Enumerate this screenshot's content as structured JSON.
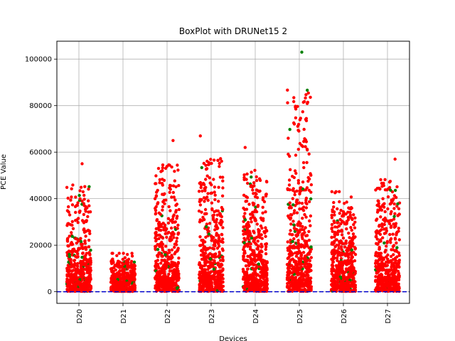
{
  "chart_data": {
    "type": "scatter",
    "title": "BoxPlot with DRUNet15 2",
    "xlabel": "Devices",
    "ylabel": "PCE Value",
    "ylim": [
      -5000,
      107700
    ],
    "yticks": [
      0,
      20000,
      40000,
      60000,
      80000,
      100000
    ],
    "grid": true,
    "categories": [
      "D20",
      "D21",
      "D22",
      "D23",
      "D24",
      "D25",
      "D26",
      "D27"
    ],
    "threshold_line": {
      "y": 0,
      "color": "#0000cc",
      "style": "dashed"
    },
    "colors": {
      "points": "#ff0000",
      "highlight_points": "#008000",
      "grid": "#b0b0b0"
    },
    "distributions": [
      {
        "category": "D20",
        "max": 55000,
        "median": 9000
      },
      {
        "category": "D21",
        "max": 16500,
        "median": 4000
      },
      {
        "category": "D22",
        "max": 65000,
        "median": 10000
      },
      {
        "category": "D23",
        "max": 67000,
        "median": 12000
      },
      {
        "category": "D24",
        "max": 62000,
        "median": 12000
      },
      {
        "category": "D25",
        "max": 103000,
        "median": 16000
      },
      {
        "category": "D26",
        "max": 43000,
        "median": 11000
      },
      {
        "category": "D27",
        "max": 57000,
        "median": 12000
      }
    ]
  }
}
